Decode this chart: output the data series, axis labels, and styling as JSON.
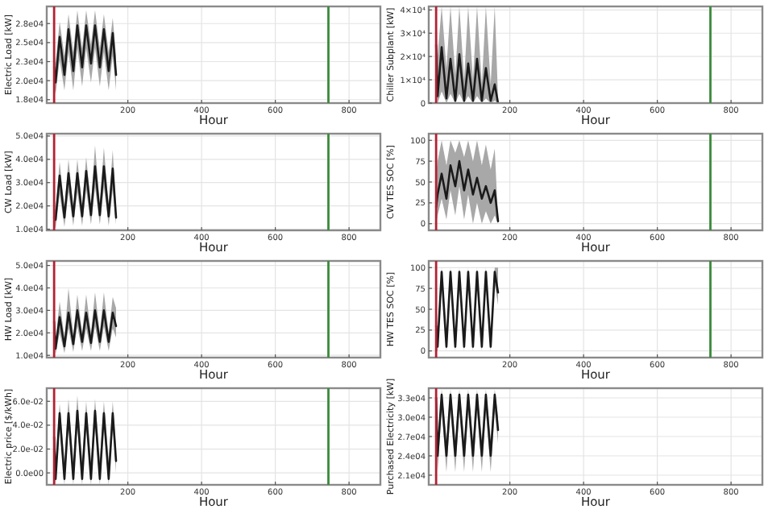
{
  "chart_data": [
    {
      "type": "line",
      "ylabel": "Electric Load [kW]",
      "xlabel": "Hour",
      "xlim": [
        -20,
        885
      ],
      "xticks": [
        200,
        400,
        600,
        800
      ],
      "ylim": [
        17300,
        30000
      ],
      "yticks": [
        {
          "value": 17750,
          "label": "1.8e04"
        },
        {
          "value": 20250,
          "label": "2.0e04"
        },
        {
          "value": 22750,
          "label": "2.3e04"
        },
        {
          "value": 25250,
          "label": "2.5e04"
        },
        {
          "value": 27750,
          "label": "2.8e04"
        }
      ],
      "grid": true,
      "ref_lines": [
        {
          "axis": "x",
          "value": 0,
          "color": "#b22234"
        },
        {
          "axis": "x",
          "value": 744,
          "color": "#3a8a3a"
        }
      ],
      "x": [
        0,
        4,
        15,
        28,
        39,
        52,
        63,
        76,
        87,
        100,
        111,
        124,
        135,
        148,
        159,
        168
      ],
      "series": [
        {
          "color": "#1a1a1a",
          "values": [
            22000,
            20000,
            26000,
            21000,
            27000,
            21500,
            27500,
            22000,
            27500,
            22500,
            27500,
            22000,
            27000,
            21500,
            26500,
            21000
          ],
          "lower": [
            19500,
            18500,
            23000,
            19000,
            24000,
            19000,
            24500,
            19500,
            24500,
            20000,
            24500,
            19500,
            24000,
            19000,
            23500,
            19000
          ],
          "upper": [
            24000,
            22500,
            28000,
            23500,
            29000,
            24000,
            29500,
            24500,
            29500,
            25000,
            29500,
            24500,
            29000,
            24000,
            28500,
            23500
          ]
        }
      ]
    },
    {
      "type": "line",
      "ylabel": "Chiller Subplant [kW]",
      "xlabel": "Hour",
      "xlim": [
        -20,
        885
      ],
      "xticks": [
        200,
        400,
        600,
        800
      ],
      "ylim": [
        0,
        41500
      ],
      "yticks": [
        0,
        {
          "value": 10000,
          "label": "1×10⁴"
        },
        {
          "value": 20000,
          "label": "2×10⁴"
        },
        {
          "value": 30000,
          "label": "3×10⁴"
        },
        {
          "value": 40000,
          "label": "4×10⁴"
        }
      ],
      "grid": true,
      "ref_lines": [
        {
          "axis": "x",
          "value": 0,
          "color": "#b22234"
        },
        {
          "axis": "x",
          "value": 744,
          "color": "#3a8a3a"
        }
      ],
      "x": [
        0,
        4,
        15,
        28,
        39,
        52,
        63,
        76,
        87,
        100,
        111,
        124,
        135,
        148,
        159,
        168
      ],
      "series": [
        {
          "color": "#1a1a1a",
          "values": [
            25000,
            3000,
            24000,
            2000,
            19000,
            1000,
            21000,
            1000,
            17000,
            1000,
            19000,
            1000,
            15000,
            1000,
            8000,
            0
          ],
          "lower": [
            8000,
            0,
            5000,
            0,
            4000,
            0,
            4000,
            0,
            3000,
            0,
            3000,
            0,
            2000,
            0,
            1000,
            0
          ],
          "upper": [
            41500,
            20000,
            41500,
            15000,
            41500,
            12000,
            41500,
            10000,
            41500,
            10000,
            41500,
            8000,
            41500,
            8000,
            41500,
            2000
          ]
        }
      ]
    },
    {
      "type": "line",
      "ylabel": "CW Load [kW]",
      "xlabel": "Hour",
      "xlim": [
        -20,
        885
      ],
      "xticks": [
        200,
        400,
        600,
        800
      ],
      "ylim": [
        9500,
        51000
      ],
      "yticks": [
        {
          "value": 10000,
          "label": "1.0e04"
        },
        {
          "value": 20000,
          "label": "2.0e04"
        },
        {
          "value": 30000,
          "label": "3.0e04"
        },
        {
          "value": 40000,
          "label": "4.0e04"
        },
        {
          "value": 50000,
          "label": "5.0e04"
        }
      ],
      "grid": true,
      "ref_lines": [
        {
          "axis": "x",
          "value": 0,
          "color": "#b22234"
        },
        {
          "axis": "x",
          "value": 744,
          "color": "#3a8a3a"
        }
      ],
      "x": [
        0,
        4,
        15,
        28,
        39,
        52,
        63,
        76,
        87,
        100,
        111,
        124,
        135,
        148,
        159,
        168
      ],
      "series": [
        {
          "color": "#1a1a1a",
          "values": [
            15000,
            14000,
            33000,
            15000,
            34000,
            15500,
            34000,
            15500,
            35000,
            16000,
            37000,
            16000,
            37000,
            15500,
            36000,
            15000
          ],
          "lower": [
            11000,
            10500,
            25000,
            11000,
            26000,
            11500,
            26000,
            11500,
            27000,
            12000,
            28000,
            12000,
            28000,
            11500,
            27000,
            12000
          ],
          "upper": [
            20000,
            18000,
            39000,
            19000,
            40000,
            19500,
            40000,
            20000,
            41000,
            20500,
            46000,
            20500,
            45000,
            20000,
            44000,
            18000
          ]
        }
      ]
    },
    {
      "type": "line",
      "ylabel": "CW TES SOC [%]",
      "xlabel": "Hour",
      "xlim": [
        -20,
        885
      ],
      "xticks": [
        200,
        400,
        600,
        800
      ],
      "ylim": [
        -8,
        108
      ],
      "yticks": [
        0,
        25,
        50,
        75,
        100
      ],
      "grid": true,
      "ref_lines": [
        {
          "axis": "x",
          "value": 0,
          "color": "#b22234"
        },
        {
          "axis": "x",
          "value": 744,
          "color": "#3a8a3a"
        }
      ],
      "x": [
        0,
        4,
        15,
        28,
        39,
        52,
        63,
        76,
        87,
        100,
        111,
        124,
        135,
        148,
        159,
        168
      ],
      "series": [
        {
          "color": "#1a1a1a",
          "values": [
            20,
            35,
            60,
            30,
            70,
            45,
            75,
            40,
            65,
            35,
            55,
            30,
            45,
            25,
            40,
            3
          ],
          "lower": [
            0,
            10,
            30,
            5,
            40,
            10,
            45,
            5,
            35,
            0,
            25,
            0,
            15,
            0,
            10,
            0
          ],
          "upper": [
            60,
            75,
            100,
            70,
            100,
            85,
            100,
            80,
            100,
            75,
            100,
            70,
            95,
            65,
            90,
            5
          ]
        }
      ]
    },
    {
      "type": "line",
      "ylabel": "HW Load [kW]",
      "xlabel": "Hour",
      "xlim": [
        -20,
        885
      ],
      "xticks": [
        200,
        400,
        600,
        800
      ],
      "ylim": [
        9000,
        52000
      ],
      "yticks": [
        {
          "value": 10000,
          "label": "1.0e04"
        },
        {
          "value": 20000,
          "label": "2.0e04"
        },
        {
          "value": 30000,
          "label": "3.0e04"
        },
        {
          "value": 40000,
          "label": "4.0e04"
        },
        {
          "value": 50000,
          "label": "5.0e04"
        }
      ],
      "grid": true,
      "ref_lines": [
        {
          "axis": "x",
          "value": 0,
          "color": "#b22234"
        },
        {
          "axis": "x",
          "value": 744,
          "color": "#3a8a3a"
        }
      ],
      "x": [
        0,
        4,
        15,
        28,
        39,
        52,
        63,
        76,
        87,
        100,
        111,
        124,
        135,
        148,
        159,
        168
      ],
      "series": [
        {
          "color": "#1a1a1a",
          "values": [
            25000,
            13000,
            27000,
            14000,
            29000,
            15000,
            30000,
            16000,
            29000,
            15500,
            30000,
            16000,
            30000,
            16000,
            29000,
            23000
          ],
          "lower": [
            18000,
            10500,
            20000,
            11000,
            22000,
            11500,
            23000,
            12000,
            22000,
            12000,
            23000,
            12000,
            23000,
            12000,
            22000,
            18000
          ],
          "upper": [
            31000,
            17000,
            34000,
            18000,
            40000,
            19000,
            37000,
            20000,
            37000,
            20000,
            38000,
            20000,
            38000,
            20000,
            36000,
            31000
          ]
        }
      ]
    },
    {
      "type": "line",
      "ylabel": "HW TES SOC [%]",
      "xlabel": "Hour",
      "xlim": [
        -20,
        885
      ],
      "xticks": [
        200,
        400,
        600,
        800
      ],
      "ylim": [
        -8,
        108
      ],
      "yticks": [
        0,
        25,
        50,
        75,
        100
      ],
      "grid": true,
      "ref_lines": [
        {
          "axis": "x",
          "value": 0,
          "color": "#b22234"
        },
        {
          "axis": "x",
          "value": 744,
          "color": "#3a8a3a"
        }
      ],
      "x": [
        0,
        4,
        15,
        28,
        39,
        52,
        63,
        76,
        87,
        100,
        111,
        124,
        135,
        148,
        159,
        168
      ],
      "series": [
        {
          "color": "#1a1a1a",
          "values": [
            30,
            5,
            95,
            5,
            95,
            5,
            95,
            5,
            95,
            5,
            95,
            5,
            95,
            5,
            95,
            70
          ],
          "lower": [
            0,
            0,
            80,
            0,
            80,
            0,
            80,
            0,
            80,
            0,
            80,
            0,
            80,
            0,
            80,
            55
          ],
          "upper": [
            55,
            20,
            100,
            20,
            100,
            20,
            100,
            20,
            100,
            20,
            100,
            20,
            100,
            20,
            100,
            100
          ]
        }
      ]
    },
    {
      "type": "line",
      "ylabel": "Electric price [$/kWh]",
      "xlabel": "Hour",
      "xlim": [
        -20,
        885
      ],
      "xticks": [
        200,
        400,
        600,
        800
      ],
      "ylim": [
        -0.01,
        0.071
      ],
      "yticks": [
        {
          "value": 0,
          "label": "0.0e00"
        },
        {
          "value": 0.02,
          "label": "2.0e-02"
        },
        {
          "value": 0.04,
          "label": "4.0e-02"
        },
        {
          "value": 0.06,
          "label": "6.0e-02"
        }
      ],
      "grid": true,
      "ref_lines": [
        {
          "axis": "x",
          "value": 0,
          "color": "#b22234"
        },
        {
          "axis": "x",
          "value": 744,
          "color": "#3a8a3a"
        }
      ],
      "x": [
        0,
        4,
        15,
        28,
        39,
        52,
        63,
        76,
        87,
        100,
        111,
        124,
        135,
        148,
        159,
        168
      ],
      "series": [
        {
          "color": "#1a1a1a",
          "values": [
            0.03,
            -0.005,
            0.05,
            -0.005,
            0.05,
            -0.005,
            0.052,
            -0.005,
            0.05,
            -0.005,
            0.052,
            -0.005,
            0.05,
            -0.005,
            0.05,
            0.01
          ],
          "lower": [
            0.01,
            -0.01,
            0.04,
            -0.01,
            0.04,
            -0.01,
            0.04,
            -0.01,
            0.04,
            -0.01,
            0.04,
            -0.01,
            0.04,
            -0.01,
            0.04,
            0
          ],
          "upper": [
            0.045,
            0.01,
            0.058,
            0.01,
            0.062,
            0.01,
            0.065,
            0.01,
            0.06,
            0.01,
            0.062,
            0.01,
            0.06,
            0.01,
            0.06,
            0.02
          ]
        }
      ]
    },
    {
      "type": "line",
      "ylabel": "Purchased Electricity [kW]",
      "xlabel": "Hour",
      "xlim": [
        -20,
        885
      ],
      "xticks": [
        200,
        400,
        600,
        800
      ],
      "ylim": [
        19500,
        34500
      ],
      "yticks": [
        {
          "value": 21000,
          "label": "2.1e04"
        },
        {
          "value": 24000,
          "label": "2.4e04"
        },
        {
          "value": 27000,
          "label": "2.7e04"
        },
        {
          "value": 30000,
          "label": "3.0e04"
        },
        {
          "value": 33000,
          "label": "3.3e04"
        }
      ],
      "grid": true,
      "ref_lines": [
        {
          "axis": "x",
          "value": 0,
          "color": "#b22234"
        }
      ],
      "x": [
        0,
        4,
        15,
        28,
        39,
        52,
        63,
        76,
        87,
        100,
        111,
        124,
        135,
        148,
        159,
        168
      ],
      "series": [
        {
          "color": "#1a1a1a",
          "values": [
            33000,
            24000,
            33500,
            24000,
            33500,
            24000,
            33500,
            24000,
            33500,
            24000,
            33500,
            24000,
            33500,
            24000,
            33500,
            28000
          ],
          "lower": [
            31000,
            21500,
            31000,
            21500,
            31000,
            21500,
            31000,
            21500,
            31000,
            21500,
            31000,
            21500,
            31000,
            21500,
            31000,
            26000
          ],
          "upper": [
            34300,
            26500,
            34300,
            26500,
            34300,
            26500,
            34300,
            26500,
            34300,
            26500,
            34300,
            26500,
            34300,
            26500,
            34300,
            30000
          ]
        }
      ]
    }
  ]
}
